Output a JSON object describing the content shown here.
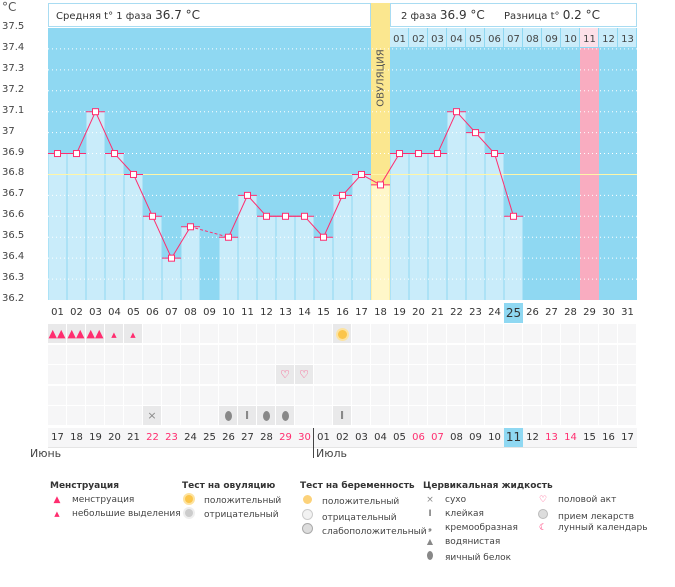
{
  "header": {
    "unit": "°C",
    "phase1_label": "Средняя t° 1 фаза",
    "phase1_value": "36.7 °C",
    "phase2_label": "2 фаза",
    "phase2_value": "36.9 °C",
    "diff_label": "Разница t°",
    "diff_value": "0.2 °C",
    "ovulation_label": "ОВУЛЯЦИЯ"
  },
  "colors": {
    "bg": "#8fd8f2",
    "bar": "#c9ecfa",
    "line": "#ff2d6f",
    "coverline": "#fff6a8",
    "ovulation": "#fbe78f",
    "pink": "#f9acc0",
    "weekend": "#ff2d6f",
    "today": "#8fd8f2"
  },
  "chart_data": {
    "type": "bar",
    "title": "",
    "xlabel": "",
    "ylabel": "°C",
    "ylim": [
      36.2,
      37.5
    ],
    "yticks": [
      "37.5",
      "37.4",
      "37.3",
      "37.2",
      "37.1",
      "37",
      "36.9",
      "36.8",
      "36.7",
      "36.6",
      "36.5",
      "36.4",
      "36.3",
      "36.2"
    ],
    "days": [
      "01",
      "02",
      "03",
      "04",
      "05",
      "06",
      "07",
      "08",
      "09",
      "10",
      "11",
      "12",
      "13",
      "14",
      "15",
      "16",
      "17",
      "18",
      "19",
      "20",
      "21",
      "22",
      "23",
      "24",
      "25",
      "26",
      "27",
      "28",
      "29",
      "30",
      "31"
    ],
    "temps": [
      36.9,
      36.9,
      37.1,
      36.9,
      36.8,
      36.6,
      36.4,
      36.55,
      null,
      36.5,
      36.7,
      36.6,
      36.6,
      36.6,
      36.5,
      36.7,
      36.8,
      36.75,
      36.9,
      36.9,
      36.9,
      37.1,
      37.0,
      36.9,
      36.6,
      null,
      null,
      null,
      null,
      null,
      null
    ],
    "coverline": 36.8,
    "ovulation_day": 18,
    "current_day": 25,
    "expected_period_day": 29,
    "luteal_days": [
      "01",
      "02",
      "03",
      "04",
      "05",
      "06",
      "07",
      "08",
      "09",
      "10",
      "11",
      "12",
      "13"
    ]
  },
  "dates": [
    "17",
    "18",
    "19",
    "20",
    "21",
    "22",
    "23",
    "24",
    "25",
    "26",
    "27",
    "28",
    "29",
    "30",
    "01",
    "02",
    "03",
    "04",
    "05",
    "06",
    "07",
    "08",
    "09",
    "10",
    "11",
    "12",
    "13",
    "14",
    "15",
    "16",
    "17"
  ],
  "weekend_dates": [
    5,
    6,
    12,
    13,
    19,
    20,
    26,
    27
  ],
  "months": [
    "Июнь",
    "Июль"
  ],
  "markers": {
    "menstruation_heavy": [
      1,
      2,
      3
    ],
    "menstruation_light": [
      4,
      5
    ],
    "ovulation_test_positive": [
      16
    ],
    "intercourse": [
      13,
      14
    ],
    "cervical_dry": [
      6
    ],
    "cervical_sticky": [
      11,
      16
    ],
    "cervical_egg_white": [
      10,
      12,
      13
    ]
  },
  "legend": {
    "menstruation": {
      "title": "Менструация",
      "items": [
        "менструация",
        "небольшие выделения"
      ]
    },
    "ovulation_test": {
      "title": "Тест на овуляцию",
      "items": [
        "положительный",
        "отрицательный"
      ]
    },
    "pregnancy_test": {
      "title": "Тест на беременность",
      "items": [
        "положительный",
        "отрицательный",
        "слабоположительный"
      ]
    },
    "cervical": {
      "title": "Цервикальная жидкость",
      "items": [
        "сухо",
        "клейкая",
        "кремообразная",
        "водянистая",
        "яичный белок"
      ]
    },
    "other": {
      "items": [
        "половой акт",
        "прием лекарств",
        "лунный календарь"
      ]
    }
  }
}
